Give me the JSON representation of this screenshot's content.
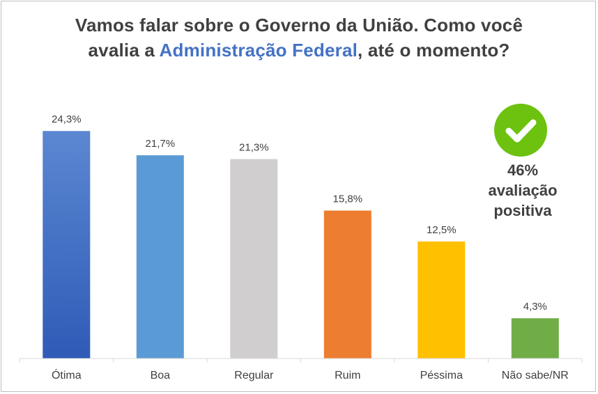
{
  "title": {
    "line1": "Vamos falar sobre o Governo da União. Como você",
    "line2_pre": "avalia a ",
    "line2_accent": "Administração Federal",
    "line2_post": ", até o momento?"
  },
  "callout": {
    "value": "46%",
    "line1": "avaliação",
    "line2": "positiva",
    "icon": "check-icon",
    "badge_color": "#6cc20f"
  },
  "chart_data": {
    "type": "bar",
    "title": "Vamos falar sobre o Governo da União. Como você avalia a Administração Federal, até o momento?",
    "categories": [
      "Ótima",
      "Boa",
      "Regular",
      "Ruim",
      "Péssima",
      "Não sabe/NR"
    ],
    "values": [
      24.3,
      21.7,
      21.3,
      15.8,
      12.5,
      4.3
    ],
    "value_labels": [
      "24,3%",
      "21,7%",
      "21,3%",
      "15,8%",
      "12,5%",
      "4,3%"
    ],
    "colors": [
      "#4472c4",
      "#5b9bd5",
      "#d0cece",
      "#ed7d31",
      "#ffc000",
      "#70ad47"
    ],
    "ylim": [
      0,
      25
    ],
    "grid": false,
    "legend": "none"
  }
}
